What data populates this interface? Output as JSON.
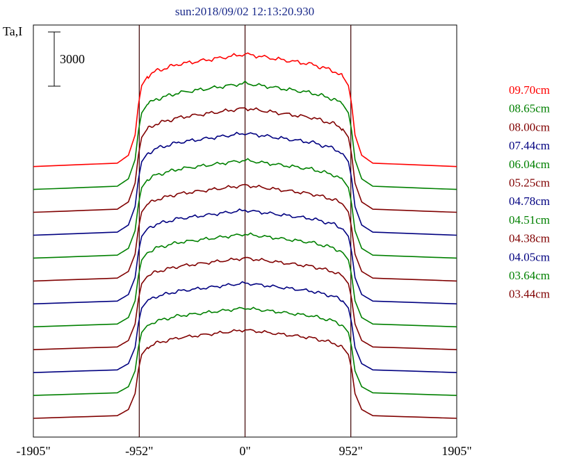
{
  "chart_data": {
    "type": "line",
    "title": "sun:2018/09/02 12:13:20.930",
    "ylabel": "Ta,I",
    "scale_bar_label": "3000",
    "x_ticks": [
      {
        "value": -1905,
        "label": "-1905\""
      },
      {
        "value": -952,
        "label": "-952\""
      },
      {
        "value": 0,
        "label": "0\""
      },
      {
        "value": 952,
        "label": "952\""
      },
      {
        "value": 1905,
        "label": "1905\""
      }
    ],
    "xlim": [
      -1905,
      1905
    ],
    "vertical_lines": [
      -952,
      0,
      952
    ],
    "grid": false,
    "legend_placement": "right",
    "profile_x": [
      -1905,
      -1150,
      -1050,
      -990,
      -960,
      -930,
      -880,
      -800,
      -700,
      -600,
      -400,
      -200,
      0,
      200,
      400,
      600,
      700,
      800,
      880,
      930,
      960,
      990,
      1050,
      1150,
      1905
    ],
    "profile_shape": [
      0,
      0.03,
      0.1,
      0.28,
      0.55,
      0.72,
      0.8,
      0.85,
      0.88,
      0.91,
      0.94,
      0.97,
      1.0,
      0.97,
      0.94,
      0.91,
      0.88,
      0.85,
      0.8,
      0.72,
      0.55,
      0.28,
      0.1,
      0.03,
      0
    ],
    "series": [
      {
        "name": "09.70cm",
        "color": "#ff0000",
        "baseline": 0,
        "amplitude": 5400
      },
      {
        "name": "08.65cm",
        "color": "#008000",
        "baseline": -1100,
        "amplitude": 5100
      },
      {
        "name": "08.00cm",
        "color": "#800000",
        "baseline": -2200,
        "amplitude": 5000
      },
      {
        "name": "07.44cm",
        "color": "#000080",
        "baseline": -3300,
        "amplitude": 4900
      },
      {
        "name": "06.04cm",
        "color": "#008000",
        "baseline": -4400,
        "amplitude": 4700
      },
      {
        "name": "05.25cm",
        "color": "#800000",
        "baseline": -5500,
        "amplitude": 4600
      },
      {
        "name": "04.78cm",
        "color": "#000080",
        "baseline": -6600,
        "amplitude": 4500
      },
      {
        "name": "04.51cm",
        "color": "#008000",
        "baseline": -7700,
        "amplitude": 4450
      },
      {
        "name": "04.38cm",
        "color": "#800000",
        "baseline": -8800,
        "amplitude": 4400
      },
      {
        "name": "04.05cm",
        "color": "#000080",
        "baseline": -9900,
        "amplitude": 4300
      },
      {
        "name": "03.64cm",
        "color": "#008000",
        "baseline": -11000,
        "amplitude": 4200
      },
      {
        "name": "03.44cm",
        "color": "#800000",
        "baseline": -12100,
        "amplitude": 4250
      }
    ],
    "ylim": [
      -13000,
      6800
    ]
  }
}
